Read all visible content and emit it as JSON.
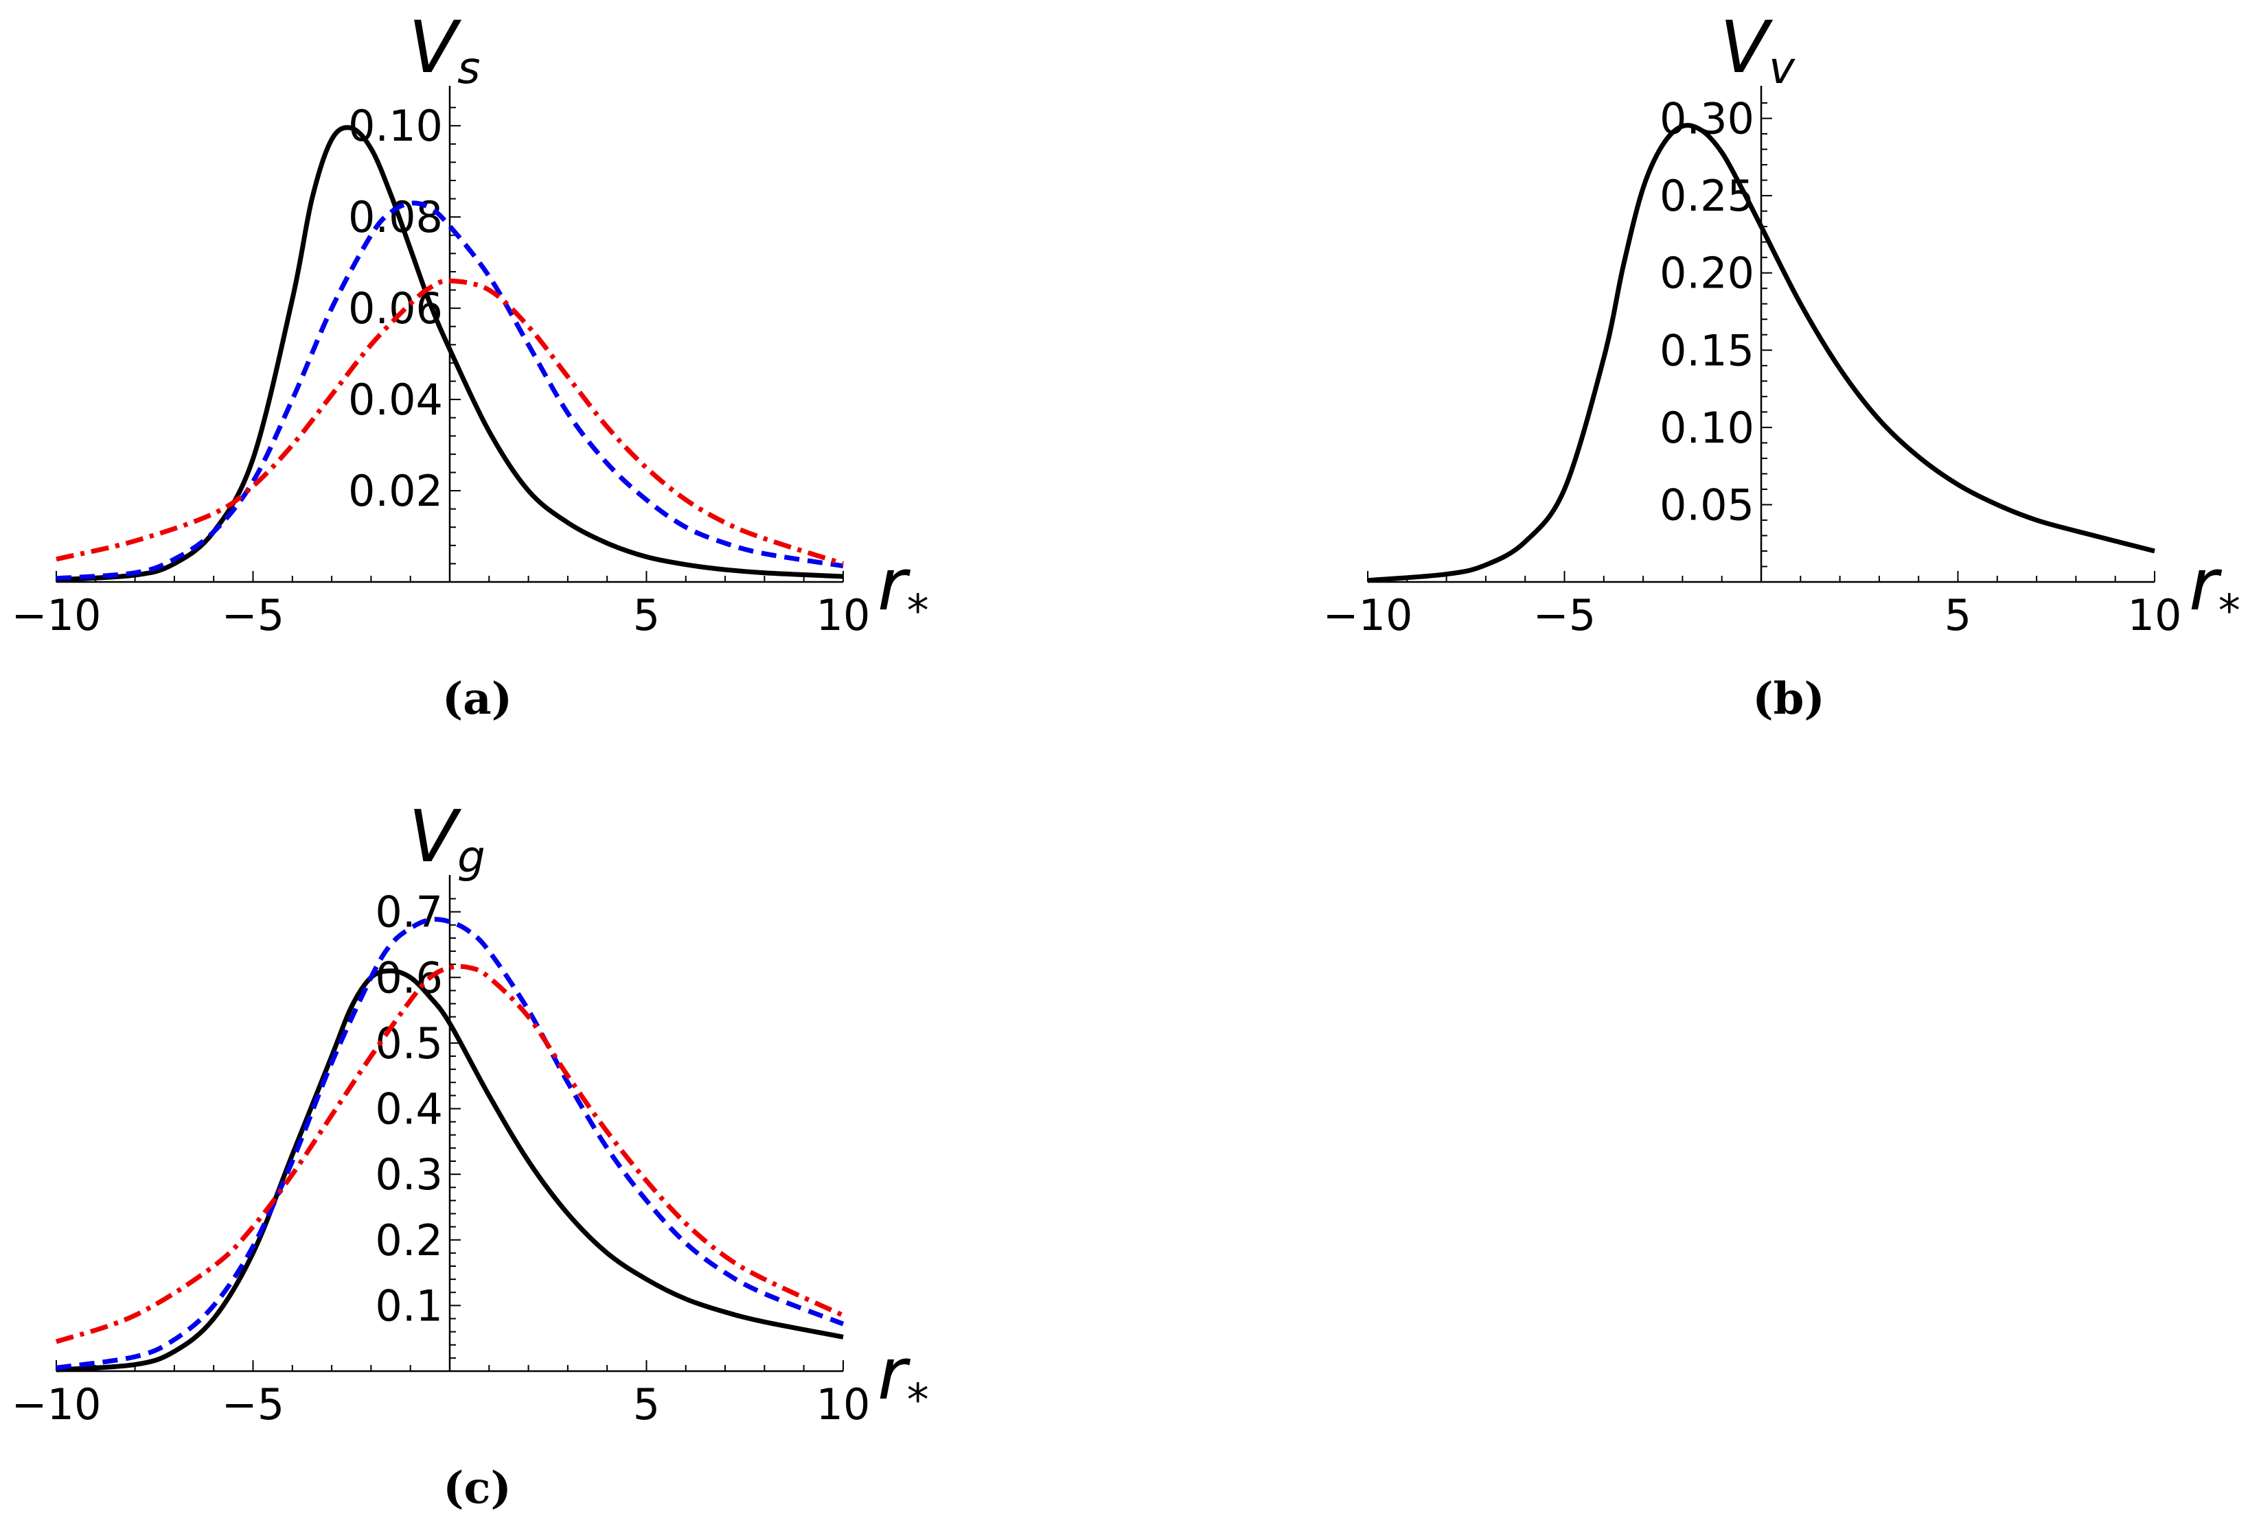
{
  "chart_data": [
    {
      "type": "line",
      "panel": "a",
      "caption": "(a)",
      "ylabel": "V",
      "ylabel_sub": "s",
      "xlabel": "r",
      "xlabel_sub": "*",
      "xlim": [
        -10,
        10
      ],
      "ylim": [
        0,
        0.105
      ],
      "xticks": [
        -10,
        -5,
        5,
        10
      ],
      "xtick_labels": [
        "−10",
        "−5",
        "5",
        "10"
      ],
      "yticks": [
        0.02,
        0.04,
        0.06,
        0.08,
        0.1
      ],
      "ytick_labels": [
        "0.02",
        "0.04",
        "0.06",
        "0.08",
        "0.10"
      ],
      "series": [
        {
          "color": "#000000",
          "style": "solid",
          "x": [
            -10,
            -8,
            -7,
            -6,
            -5,
            -4,
            -3.5,
            -3,
            -2.5,
            -2,
            -1.5,
            -1,
            -0.5,
            0,
            1,
            2,
            3,
            4,
            5,
            6,
            7,
            8,
            10
          ],
          "y": [
            0.0005,
            0.0015,
            0.004,
            0.011,
            0.027,
            0.062,
            0.084,
            0.097,
            0.0995,
            0.095,
            0.085,
            0.073,
            0.061,
            0.051,
            0.033,
            0.02,
            0.013,
            0.0085,
            0.0055,
            0.0038,
            0.0027,
            0.002,
            0.0012
          ]
        },
        {
          "color": "#0000ee",
          "style": "dashed",
          "x": [
            -10,
            -8,
            -7,
            -6,
            -5,
            -4,
            -3,
            -2,
            -1.5,
            -1,
            -0.5,
            0,
            1,
            2,
            3,
            4,
            5,
            6,
            7,
            8,
            10
          ],
          "y": [
            0.0008,
            0.002,
            0.005,
            0.011,
            0.022,
            0.04,
            0.06,
            0.076,
            0.081,
            0.083,
            0.082,
            0.078,
            0.067,
            0.052,
            0.037,
            0.026,
            0.018,
            0.012,
            0.0085,
            0.0062,
            0.0035
          ]
        },
        {
          "color": "#ee0000",
          "style": "dashdot",
          "x": [
            -10,
            -8,
            -6,
            -5,
            -4,
            -3,
            -2,
            -1,
            -0.5,
            0,
            1,
            2,
            3,
            4,
            5,
            6,
            7,
            8,
            10
          ],
          "y": [
            0.005,
            0.009,
            0.015,
            0.021,
            0.03,
            0.041,
            0.052,
            0.061,
            0.0645,
            0.066,
            0.064,
            0.056,
            0.045,
            0.034,
            0.025,
            0.018,
            0.013,
            0.0095,
            0.004
          ]
        }
      ]
    },
    {
      "type": "line",
      "panel": "b",
      "caption": "(b)",
      "ylabel": "V",
      "ylabel_sub": "v",
      "xlabel": "r",
      "xlabel_sub": "*",
      "xlim": [
        -10,
        10
      ],
      "ylim": [
        0,
        0.31
      ],
      "xticks": [
        -10,
        -5,
        5,
        10
      ],
      "xtick_labels": [
        "−10",
        "−5",
        "5",
        "10"
      ],
      "yticks": [
        0.05,
        0.1,
        0.15,
        0.2,
        0.25,
        0.3
      ],
      "ytick_labels": [
        "0.05",
        "0.10",
        "0.15",
        "0.20",
        "0.25",
        "0.30"
      ],
      "series": [
        {
          "color": "#000000",
          "style": "solid",
          "x": [
            -10,
            -8,
            -7,
            -6,
            -5,
            -4,
            -3.5,
            -3,
            -2.5,
            -2,
            -1.5,
            -1,
            -0.5,
            0,
            1,
            2,
            3,
            4,
            5,
            6,
            7,
            8,
            10
          ],
          "y": [
            0.001,
            0.005,
            0.011,
            0.026,
            0.06,
            0.145,
            0.205,
            0.255,
            0.283,
            0.295,
            0.292,
            0.278,
            0.255,
            0.23,
            0.18,
            0.138,
            0.105,
            0.081,
            0.063,
            0.05,
            0.04,
            0.033,
            0.02
          ]
        }
      ]
    },
    {
      "type": "line",
      "panel": "c",
      "caption": "(c)",
      "ylabel": "V",
      "ylabel_sub": "g",
      "xlabel": "r",
      "xlabel_sub": "*",
      "xlim": [
        -10,
        10
      ],
      "ylim": [
        0,
        0.73
      ],
      "xticks": [
        -10,
        -5,
        5,
        10
      ],
      "xtick_labels": [
        "−10",
        "−5",
        "5",
        "10"
      ],
      "yticks": [
        0.1,
        0.2,
        0.3,
        0.4,
        0.5,
        0.6,
        0.7
      ],
      "ytick_labels": [
        "0.1",
        "0.2",
        "0.3",
        "0.4",
        "0.5",
        "0.6",
        "0.7"
      ],
      "series": [
        {
          "color": "#000000",
          "style": "solid",
          "x": [
            -10,
            -8,
            -7,
            -6,
            -5,
            -4,
            -3,
            -2.5,
            -2,
            -1.5,
            -1,
            -0.5,
            0,
            1,
            2,
            3,
            4,
            5,
            6,
            7,
            8,
            10
          ],
          "y": [
            0.002,
            0.01,
            0.03,
            0.08,
            0.18,
            0.33,
            0.48,
            0.555,
            0.6,
            0.61,
            0.6,
            0.57,
            0.53,
            0.42,
            0.32,
            0.24,
            0.18,
            0.14,
            0.11,
            0.09,
            0.075,
            0.052
          ]
        },
        {
          "color": "#0000ee",
          "style": "dashed",
          "x": [
            -10,
            -8,
            -7,
            -6,
            -5,
            -4,
            -3,
            -2,
            -1.5,
            -1,
            -0.5,
            0,
            0.5,
            1,
            2,
            3,
            4,
            5,
            6,
            7,
            8,
            10
          ],
          "y": [
            0.005,
            0.022,
            0.048,
            0.1,
            0.19,
            0.32,
            0.47,
            0.6,
            0.65,
            0.675,
            0.688,
            0.685,
            0.67,
            0.64,
            0.55,
            0.44,
            0.34,
            0.26,
            0.195,
            0.15,
            0.118,
            0.072
          ]
        },
        {
          "color": "#ee0000",
          "style": "dashdot",
          "x": [
            -10,
            -8,
            -6,
            -5,
            -4,
            -3,
            -2,
            -1,
            -0.5,
            0,
            0.5,
            1,
            2,
            3,
            4,
            5,
            6,
            7,
            8,
            10
          ],
          "y": [
            0.045,
            0.085,
            0.16,
            0.22,
            0.3,
            0.39,
            0.48,
            0.565,
            0.6,
            0.615,
            0.615,
            0.6,
            0.54,
            0.45,
            0.365,
            0.29,
            0.225,
            0.175,
            0.14,
            0.085
          ]
        }
      ]
    }
  ]
}
